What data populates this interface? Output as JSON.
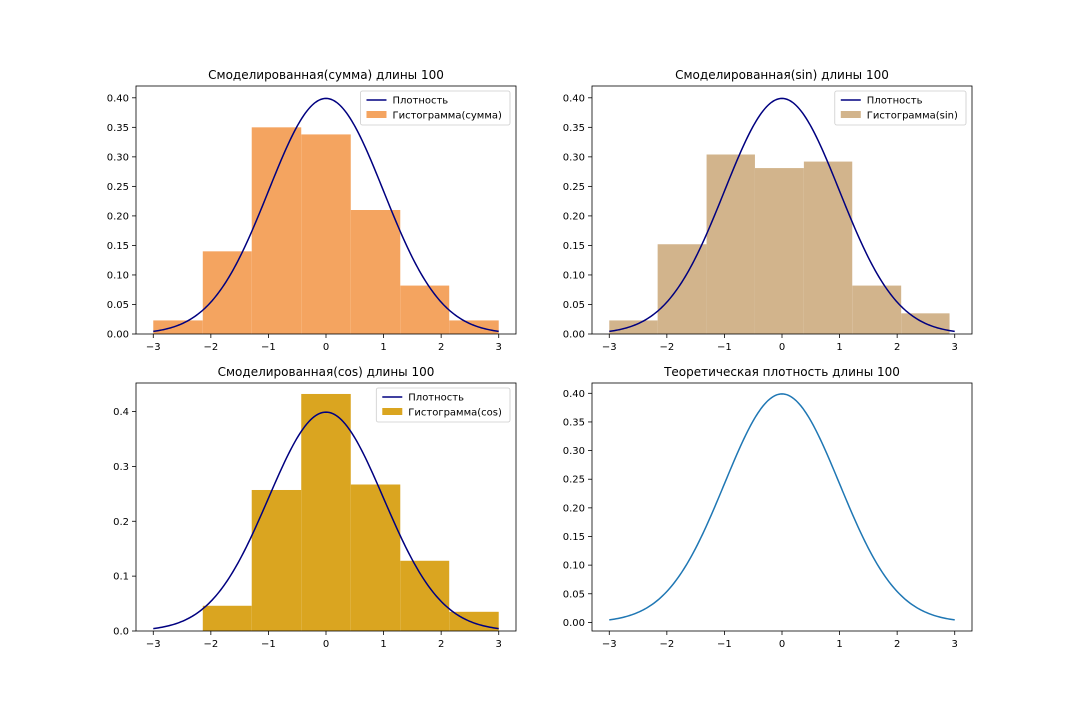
{
  "chart_data": [
    {
      "type": "bar",
      "title": "Смоделированная(сумма) длины 100",
      "xlim": [
        -3.3,
        3.3
      ],
      "ylim": [
        0,
        0.42
      ],
      "xticks": [
        -3,
        -2,
        -1,
        0,
        1,
        2,
        3
      ],
      "yticks": [
        0,
        0.05,
        0.1,
        0.15,
        0.2,
        0.25,
        0.3,
        0.35,
        0.4
      ],
      "ytick_decimals": 2,
      "legend": "top-right",
      "density": {
        "name": "Плотность",
        "color": "#000080",
        "x_range": [
          -3,
          3
        ]
      },
      "histogram": {
        "name": "Гистограмма(сумма)",
        "color": "#f4a460",
        "bin_edges": [
          -3.0,
          -2.14,
          -1.29,
          -0.43,
          0.43,
          1.29,
          2.14,
          3.0
        ],
        "values": [
          0.023,
          0.14,
          0.35,
          0.338,
          0.21,
          0.082,
          0.023
        ]
      }
    },
    {
      "type": "bar",
      "title": "Смоделированная(sin) длины 100",
      "xlim": [
        -3.3,
        3.3
      ],
      "ylim": [
        0,
        0.42
      ],
      "xticks": [
        -3,
        -2,
        -1,
        0,
        1,
        2,
        3
      ],
      "yticks": [
        0,
        0.05,
        0.1,
        0.15,
        0.2,
        0.25,
        0.3,
        0.35,
        0.4
      ],
      "ytick_decimals": 2,
      "legend": "top-right",
      "density": {
        "name": "Плотность",
        "color": "#000080",
        "x_range": [
          -3,
          3
        ]
      },
      "histogram": {
        "name": "Гистограмма(sin)",
        "color": "#d2b48c",
        "bin_edges": [
          -3.0,
          -2.16,
          -1.31,
          -0.47,
          0.38,
          1.22,
          2.07,
          2.91
        ],
        "values": [
          0.023,
          0.152,
          0.304,
          0.281,
          0.292,
          0.082,
          0.035
        ]
      }
    },
    {
      "type": "bar",
      "title": "Смоделированная(cos) длины 100",
      "xlim": [
        -3.3,
        3.3
      ],
      "ylim": [
        0,
        0.452
      ],
      "xticks": [
        -3,
        -2,
        -1,
        0,
        1,
        2,
        3
      ],
      "yticks": [
        0,
        0.1,
        0.2,
        0.3,
        0.4
      ],
      "ytick_decimals": 1,
      "legend": "top-right",
      "density": {
        "name": "Плотность",
        "color": "#000080",
        "x_range": [
          -3,
          3
        ]
      },
      "histogram": {
        "name": "Гистограмма(cos)",
        "color": "#daa520",
        "bin_edges": [
          -2.14,
          -1.29,
          -0.43,
          0.43,
          1.29,
          2.14,
          3.0
        ],
        "values": [
          0.046,
          0.257,
          0.432,
          0.267,
          0.128,
          0.035
        ]
      }
    },
    {
      "type": "line",
      "title": "Теоретическая плотность длины 100",
      "xlim": [
        -3.3,
        3.3
      ],
      "ylim": [
        -0.015,
        0.418
      ],
      "xticks": [
        -3,
        -2,
        -1,
        0,
        1,
        2,
        3
      ],
      "yticks": [
        0,
        0.05,
        0.1,
        0.15,
        0.2,
        0.25,
        0.3,
        0.35,
        0.4
      ],
      "ytick_decimals": 2,
      "density": {
        "name": "",
        "color": "#1f77b4",
        "x_range": [
          -3,
          3
        ]
      }
    }
  ]
}
